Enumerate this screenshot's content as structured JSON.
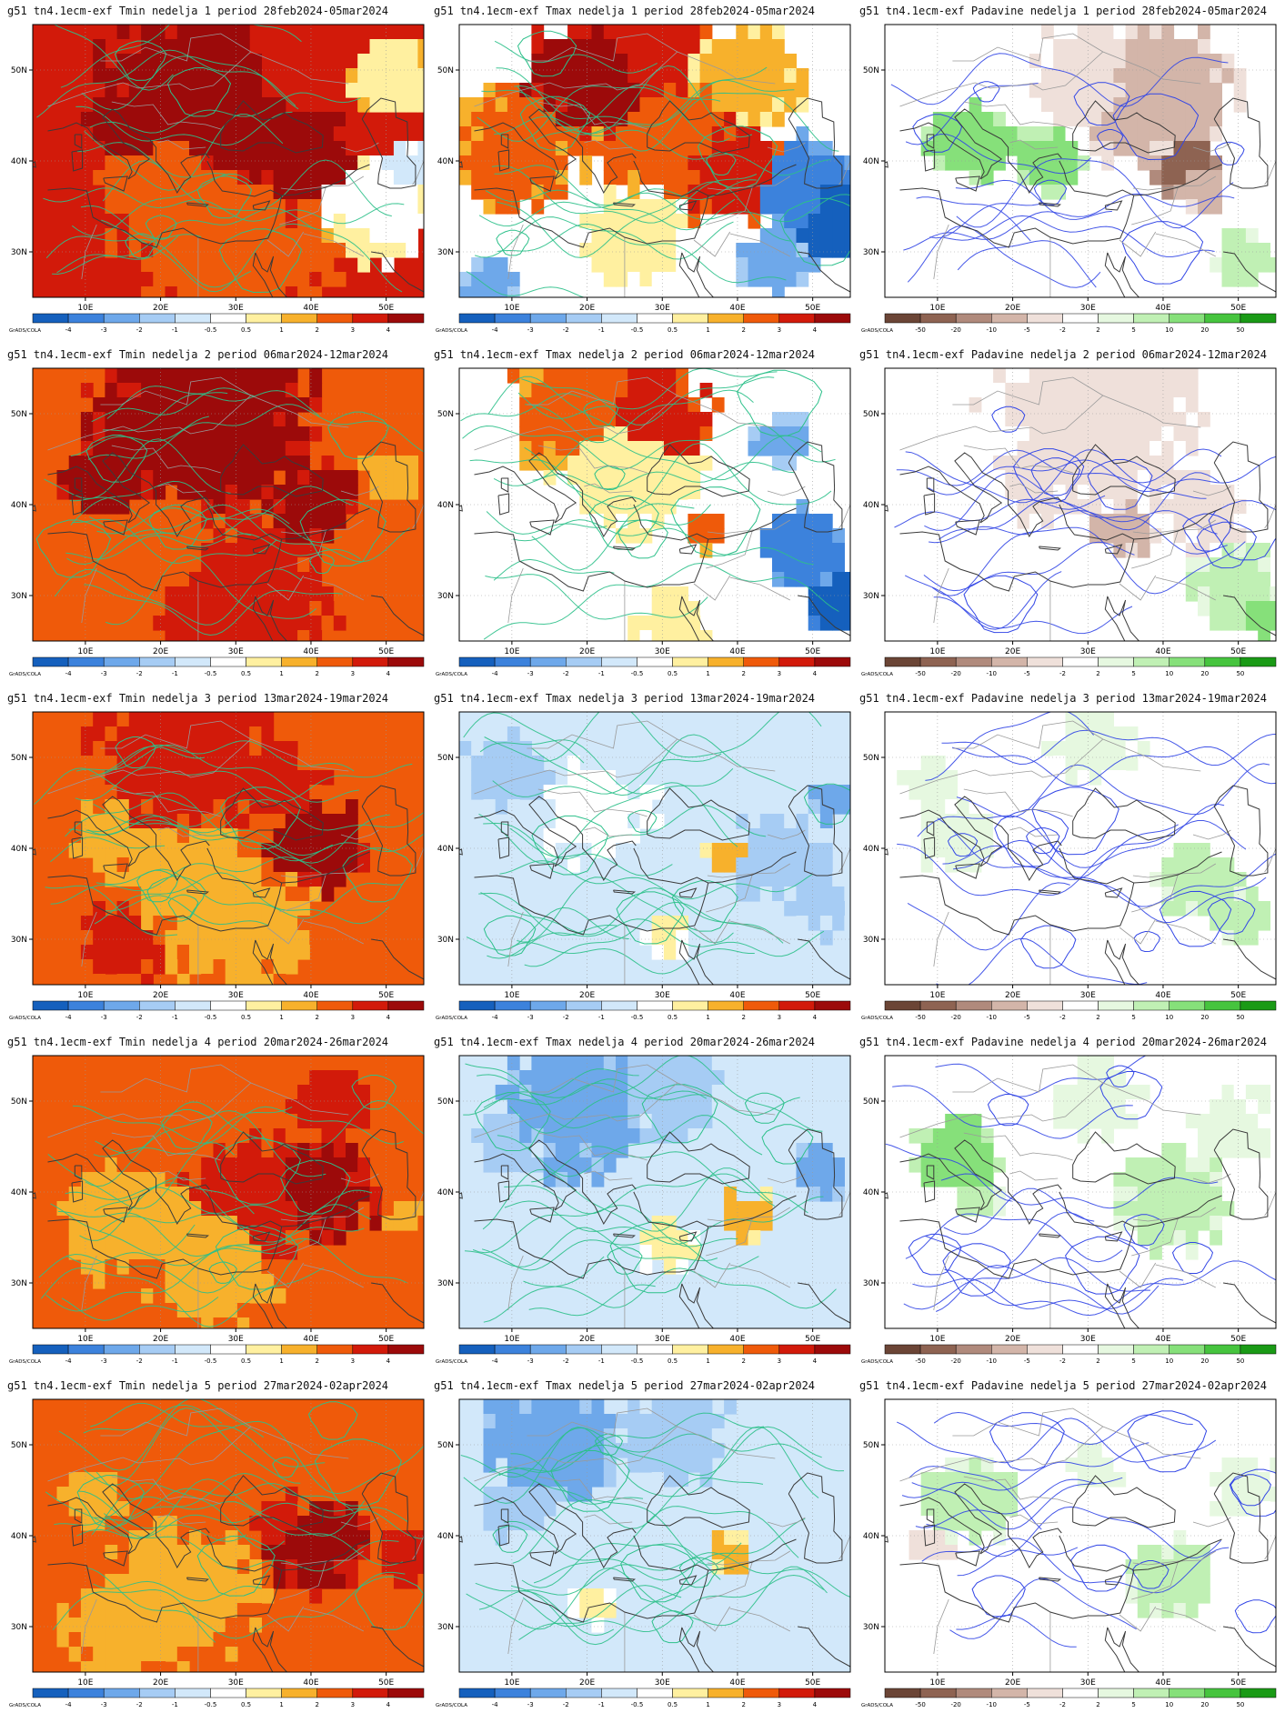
{
  "rows": [
    {
      "period": "28feb2024-05mar2024",
      "panels": [
        {
          "title": "g51 tn4.1ecm-exf Tmin nedelja 1 period 28feb2024-05mar2024",
          "variable": "Tmin",
          "week": 1
        },
        {
          "title": "g51 tn4.1ecm-exf Tmax nedelja 1 period 28feb2024-05mar2024",
          "variable": "Tmax",
          "week": 1
        },
        {
          "title": "g51 tn4.1ecm-exf Padavine nedelja 1 period 28feb2024-05mar2024",
          "variable": "Padavine",
          "week": 1
        }
      ]
    },
    {
      "period": "06mar2024-12mar2024",
      "panels": [
        {
          "title": "g51 tn4.1ecm-exf Tmin nedelja 2 period 06mar2024-12mar2024",
          "variable": "Tmin",
          "week": 2
        },
        {
          "title": "g51 tn4.1ecm-exf Tmax nedelja 2 period 06mar2024-12mar2024",
          "variable": "Tmax",
          "week": 2
        },
        {
          "title": "g51 tn4.1ecm-exf Padavine nedelja 2 period 06mar2024-12mar2024",
          "variable": "Padavine",
          "week": 2
        }
      ]
    },
    {
      "period": "13mar2024-19mar2024",
      "panels": [
        {
          "title": "g51 tn4.1ecm-exf Tmin nedelja 3 period 13mar2024-19mar2024",
          "variable": "Tmin",
          "week": 3
        },
        {
          "title": "g51 tn4.1ecm-exf Tmax nedelja 3 period 13mar2024-19mar2024",
          "variable": "Tmax",
          "week": 3
        },
        {
          "title": "g51 tn4.1ecm-exf Padavine nedelja 3 period 13mar2024-19mar2024",
          "variable": "Padavine",
          "week": 3
        }
      ]
    },
    {
      "period": "20mar2024-26mar2024",
      "panels": [
        {
          "title": "g51 tn4.1ecm-exf Tmin nedelja 4 period 20mar2024-26mar2024",
          "variable": "Tmin",
          "week": 4
        },
        {
          "title": "g51 tn4.1ecm-exf Tmax nedelja 4 period 20mar2024-26mar2024",
          "variable": "Tmax",
          "week": 4
        },
        {
          "title": "g51 tn4.1ecm-exf Padavine nedelja 4 period 20mar2024-26mar2024",
          "variable": "Padavine",
          "week": 4
        }
      ]
    },
    {
      "period": "27mar2024-02apr2024",
      "panels": [
        {
          "title": "g51 tn4.1ecm-exf Tmin nedelja 5 period 27mar2024-02apr2024",
          "variable": "Tmin",
          "week": 5
        },
        {
          "title": "g51 tn4.1ecm-exf Tmax nedelja 5 period 27mar2024-02apr2024",
          "variable": "Tmax",
          "week": 5
        },
        {
          "title": "g51 tn4.1ecm-exf Padavine nedelja 5 period 27mar2024-02apr2024",
          "variable": "Padavine",
          "week": 5
        }
      ]
    }
  ],
  "axes": {
    "lon_ticks": [
      "10E",
      "20E",
      "30E",
      "40E",
      "50E"
    ],
    "lat_ticks": [
      "50N",
      "40N",
      "30N"
    ],
    "lon_range": [
      3,
      55
    ],
    "lat_range": [
      25,
      55
    ]
  },
  "colorbars": {
    "credit": "GrADS/COLA",
    "temperature": {
      "labels": [
        "-4",
        "-3",
        "-2",
        "-1",
        "-0.5",
        "0.5",
        "1",
        "2",
        "3",
        "4"
      ],
      "colors": [
        "#1560bd",
        "#3c82dc",
        "#6ea8ea",
        "#a6ccf4",
        "#d2e8fa",
        "#ffffff",
        "#fff0a0",
        "#f7b12c",
        "#ef5a0a",
        "#d21a0a",
        "#9c0a0a"
      ]
    },
    "precipitation": {
      "labels": [
        "-50",
        "-20",
        "-10",
        "-5",
        "-2",
        "2",
        "5",
        "10",
        "20",
        "50"
      ],
      "colors": [
        "#6b4536",
        "#8e6352",
        "#b08a7c",
        "#d3b5a9",
        "#efe0da",
        "#ffffff",
        "#e6f8e0",
        "#c0f0b4",
        "#86e07a",
        "#46c43e",
        "#1a9a16"
      ]
    }
  },
  "colors": {
    "temp_contour": "#2cc08a",
    "precip_contour": "#3246e6",
    "coastline": "#3a3a3a",
    "borders": "#9a9a9a"
  }
}
